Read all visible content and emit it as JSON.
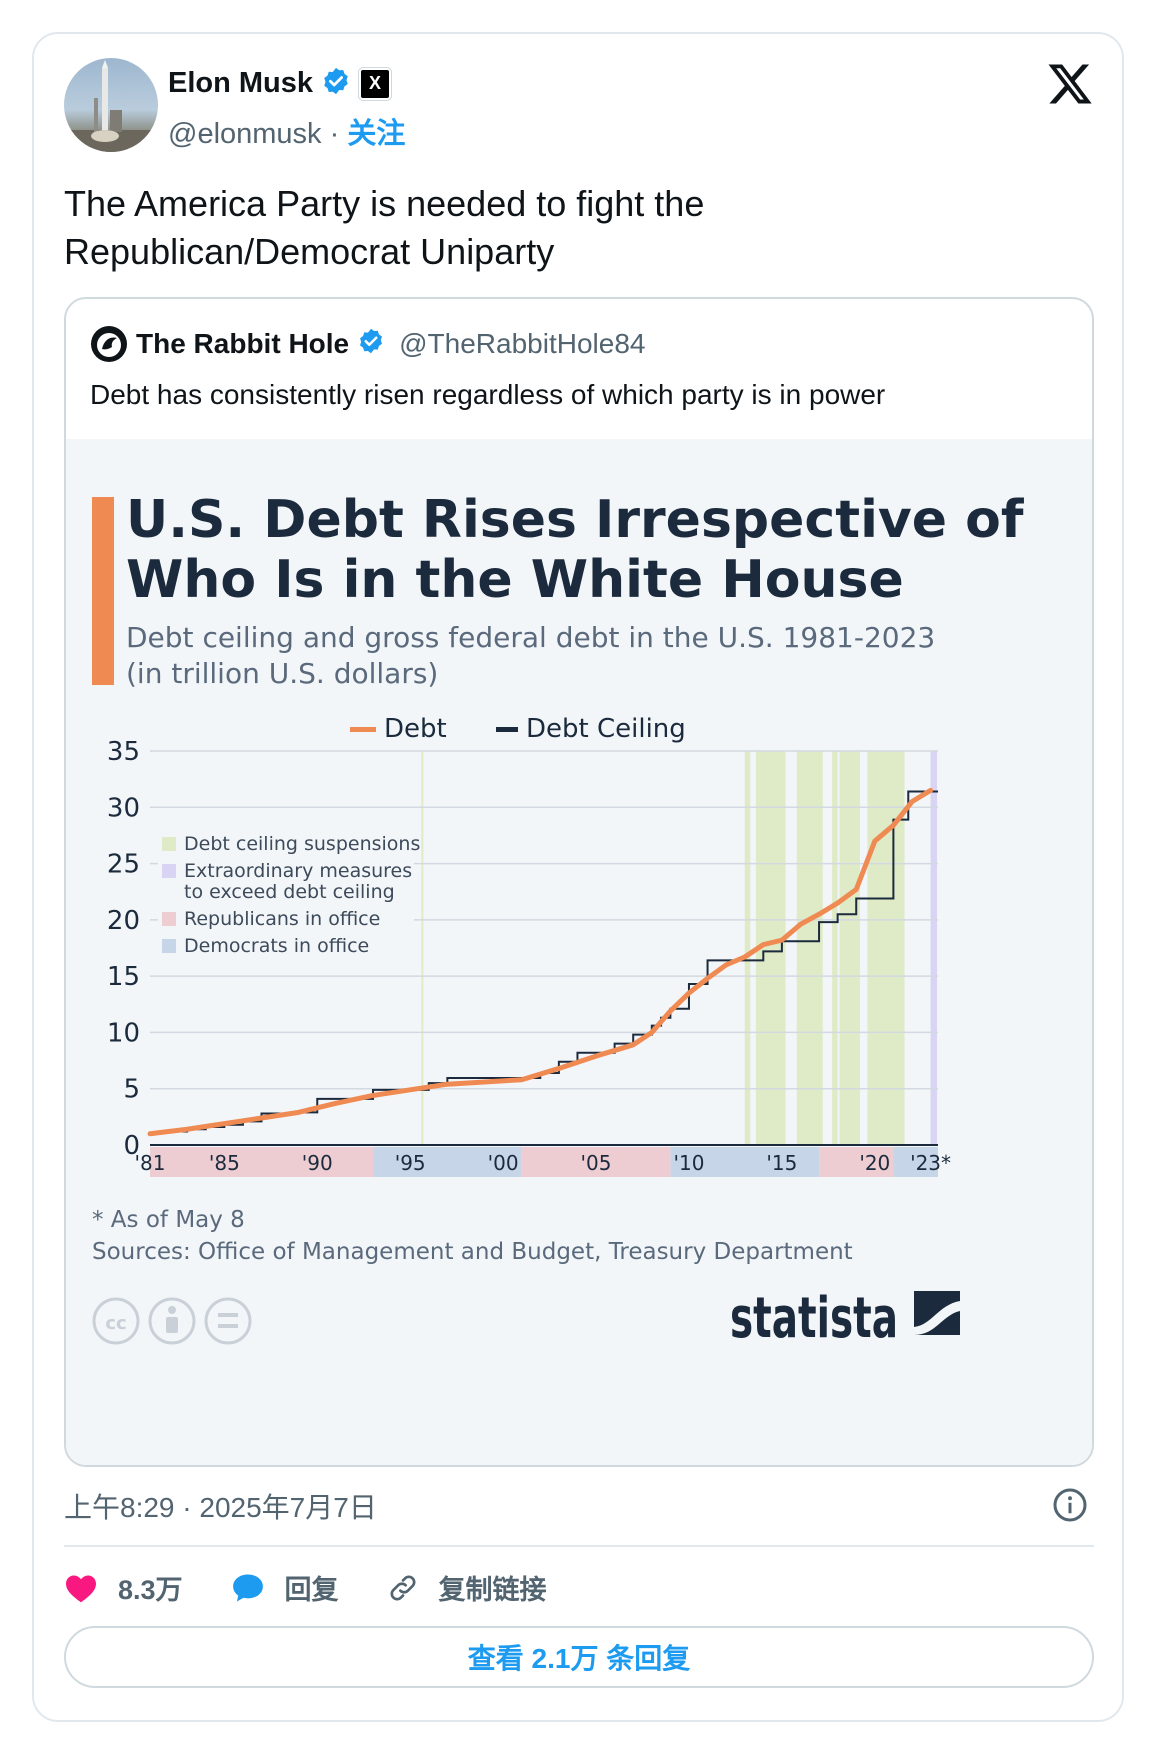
{
  "tweet": {
    "author_name": "Elon Musk",
    "handle": "@elonmusk",
    "separator": "·",
    "follow_label": "关注",
    "badge_x": "X",
    "text_line1": "The America Party is needed to fight the",
    "text_line2": "Republican/Democrat Uniparty",
    "timestamp": "上午8:29 · 2025年7月7日"
  },
  "quote": {
    "author_name": "The Rabbit Hole",
    "handle": "@TheRabbitHole84",
    "text": "Debt has consistently risen regardless of which party is in power"
  },
  "chart_data": {
    "type": "line",
    "title_line1": "U.S. Debt Rises Irrespective of",
    "title_line2": "Who Is in the White House",
    "subtitle_line1": "Debt ceiling and gross federal debt in the U.S. 1981-2023",
    "subtitle_line2": "(in trillion U.S. dollars)",
    "legend_series": [
      "Debt",
      "Debt Ceiling"
    ],
    "legend_overlays": [
      "Debt ceiling suspensions",
      "Extraordinary measures",
      "to exceed debt ceiling",
      "Republicans in office",
      "Democrats in office"
    ],
    "xlim": [
      1981,
      2023.4
    ],
    "ylim": [
      0,
      35
    ],
    "y_ticks": [
      0,
      5,
      10,
      15,
      20,
      25,
      30,
      35
    ],
    "x_tick_labels": [
      {
        "x": 1981,
        "label": "'81"
      },
      {
        "x": 1985,
        "label": "'85"
      },
      {
        "x": 1990,
        "label": "'90"
      },
      {
        "x": 1995,
        "label": "'95"
      },
      {
        "x": 2000,
        "label": "'00"
      },
      {
        "x": 2005,
        "label": "'05"
      },
      {
        "x": 2010,
        "label": "'10"
      },
      {
        "x": 2015,
        "label": "'15"
      },
      {
        "x": 2020,
        "label": "'20"
      },
      {
        "x": 2023,
        "label": "'23*"
      }
    ],
    "party_periods": [
      {
        "party": "R",
        "start": 1981,
        "end": 1993
      },
      {
        "party": "D",
        "start": 1993,
        "end": 2001
      },
      {
        "party": "R",
        "start": 2001,
        "end": 2009
      },
      {
        "party": "D",
        "start": 2009,
        "end": 2017
      },
      {
        "party": "R",
        "start": 2017,
        "end": 2021
      },
      {
        "party": "D",
        "start": 2021,
        "end": 2023.4
      }
    ],
    "suspensions": [
      [
        1995.6,
        1995.7
      ],
      [
        2013.0,
        2013.3
      ],
      [
        2013.6,
        2015.2
      ],
      [
        2015.8,
        2017.2
      ],
      [
        2017.7,
        2018.0
      ],
      [
        2018.1,
        2019.2
      ],
      [
        2019.6,
        2021.6
      ]
    ],
    "extraordinary_measures": [
      [
        2023.0,
        2023.35
      ]
    ],
    "series": [
      {
        "name": "Debt",
        "color": "#ef8a52",
        "x": [
          1981,
          1983,
          1985,
          1987,
          1989,
          1991,
          1993,
          1995,
          1997,
          1999,
          2001,
          2003,
          2005,
          2007,
          2008,
          2009,
          2010,
          2011,
          2012,
          2013,
          2014,
          2015,
          2016,
          2017,
          2018,
          2019,
          2020,
          2021,
          2022,
          2023
        ],
        "values": [
          1.0,
          1.4,
          1.9,
          2.4,
          2.9,
          3.7,
          4.4,
          4.9,
          5.4,
          5.6,
          5.8,
          6.8,
          7.9,
          8.9,
          10.0,
          11.9,
          13.5,
          14.8,
          16.0,
          16.7,
          17.8,
          18.2,
          19.6,
          20.5,
          21.5,
          22.7,
          27.0,
          28.4,
          30.5,
          31.5
        ]
      },
      {
        "name": "Debt Ceiling",
        "color": "#1b2a3c",
        "step_x": [
          1981,
          1982,
          1983,
          1984,
          1985,
          1986,
          1987,
          1989,
          1990,
          1993,
          1996,
          1997,
          2002,
          2003,
          2004,
          2006,
          2007,
          2008,
          2008.5,
          2009,
          2010,
          2011,
          2014,
          2015,
          2017,
          2018,
          2019,
          2021,
          2021.8,
          2023.4
        ],
        "step_values": [
          1.1,
          1.2,
          1.4,
          1.6,
          1.8,
          2.1,
          2.8,
          2.9,
          4.1,
          4.9,
          5.5,
          5.95,
          6.4,
          7.4,
          8.2,
          9.0,
          9.8,
          10.6,
          11.3,
          12.1,
          14.3,
          16.4,
          17.2,
          18.1,
          19.8,
          20.5,
          21.9,
          28.9,
          31.4,
          31.4
        ]
      }
    ],
    "footnote": "* As of May 8",
    "sources": "Sources: Office of Management and Budget, Treasury Department",
    "brand": "statista",
    "license_icons": [
      "cc",
      "by",
      "nd"
    ],
    "colors": {
      "accent_bar": "#ef8a52",
      "title": "#1b2a3c",
      "suspension": "#dfebc6",
      "extraordinary": "#d9d4f3",
      "republican": "#edcdd2",
      "democrat": "#c7d5e8"
    }
  },
  "actions": {
    "likes": "8.3万",
    "reply_label": "回复",
    "copy_link_label": "复制链接",
    "view_replies_label": "查看 2.1万 条回复"
  },
  "colors": {
    "link_blue": "#1d9bf0",
    "verified_blue": "#1d9bf0",
    "like_pink": "#f91880",
    "secondary_text": "#536471"
  },
  "icons": [
    "verified-badge-icon",
    "x-logo-icon",
    "info-icon",
    "heart-icon",
    "reply-bubble-icon",
    "link-icon"
  ]
}
